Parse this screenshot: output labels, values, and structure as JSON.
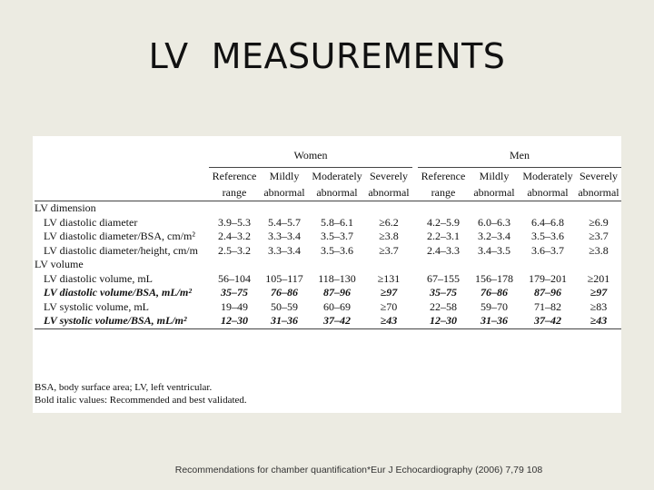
{
  "title": "LV  MEASUREMENTS",
  "table": {
    "groups": [
      "Women",
      "Men"
    ],
    "columns": [
      [
        "Reference",
        "range"
      ],
      [
        "Mildly",
        "abnormal"
      ],
      [
        "Moderately",
        "abnormal"
      ],
      [
        "Severely",
        "abnormal"
      ],
      [
        "Reference",
        "range"
      ],
      [
        "Mildly",
        "abnormal"
      ],
      [
        "Moderately",
        "abnormal"
      ],
      [
        "Severely",
        "abnormal"
      ]
    ],
    "sections": [
      {
        "label": "LV dimension",
        "rows": [
          {
            "label": "LV diastolic diameter",
            "emph": false,
            "values": [
              "3.9–5.3",
              "5.4–5.7",
              "5.8–6.1",
              "≥6.2",
              "4.2–5.9",
              "6.0–6.3",
              "6.4–6.8",
              "≥6.9"
            ]
          },
          {
            "label": "LV diastolic diameter/BSA, cm/m²",
            "emph": false,
            "values": [
              "2.4–3.2",
              "3.3–3.4",
              "3.5–3.7",
              "≥3.8",
              "2.2–3.1",
              "3.2–3.4",
              "3.5–3.6",
              "≥3.7"
            ]
          },
          {
            "label": "LV diastolic diameter/height, cm/m",
            "emph": false,
            "values": [
              "2.5–3.2",
              "3.3–3.4",
              "3.5–3.6",
              "≥3.7",
              "2.4–3.3",
              "3.4–3.5",
              "3.6–3.7",
              "≥3.8"
            ]
          }
        ]
      },
      {
        "label": "LV volume",
        "rows": [
          {
            "label": "LV diastolic volume, mL",
            "emph": false,
            "values": [
              "56–104",
              "105–117",
              "118–130",
              "≥131",
              "67–155",
              "156–178",
              "179–201",
              "≥201"
            ]
          },
          {
            "label": "LV diastolic volume/BSA, mL/m²",
            "emph": true,
            "values": [
              "35–75",
              "76–86",
              "87–96",
              "≥97",
              "35–75",
              "76–86",
              "87–96",
              "≥97"
            ]
          },
          {
            "label": "LV systolic volume, mL",
            "emph": false,
            "values": [
              "19–49",
              "50–59",
              "60–69",
              "≥70",
              "22–58",
              "59–70",
              "71–82",
              "≥83"
            ]
          },
          {
            "label": "LV systolic volume/BSA, mL/m²",
            "emph": true,
            "values": [
              "12–30",
              "31–36",
              "37–42",
              "≥43",
              "12–30",
              "31–36",
              "37–42",
              "≥43"
            ]
          }
        ]
      }
    ],
    "footnote_1": "BSA, body surface area; LV, left ventricular.",
    "footnote_2": "Bold italic values: Recommended and best validated."
  },
  "citation": "Recommendations for chamber quantification*Eur J Echocardiography (2006) 7,79 108"
}
